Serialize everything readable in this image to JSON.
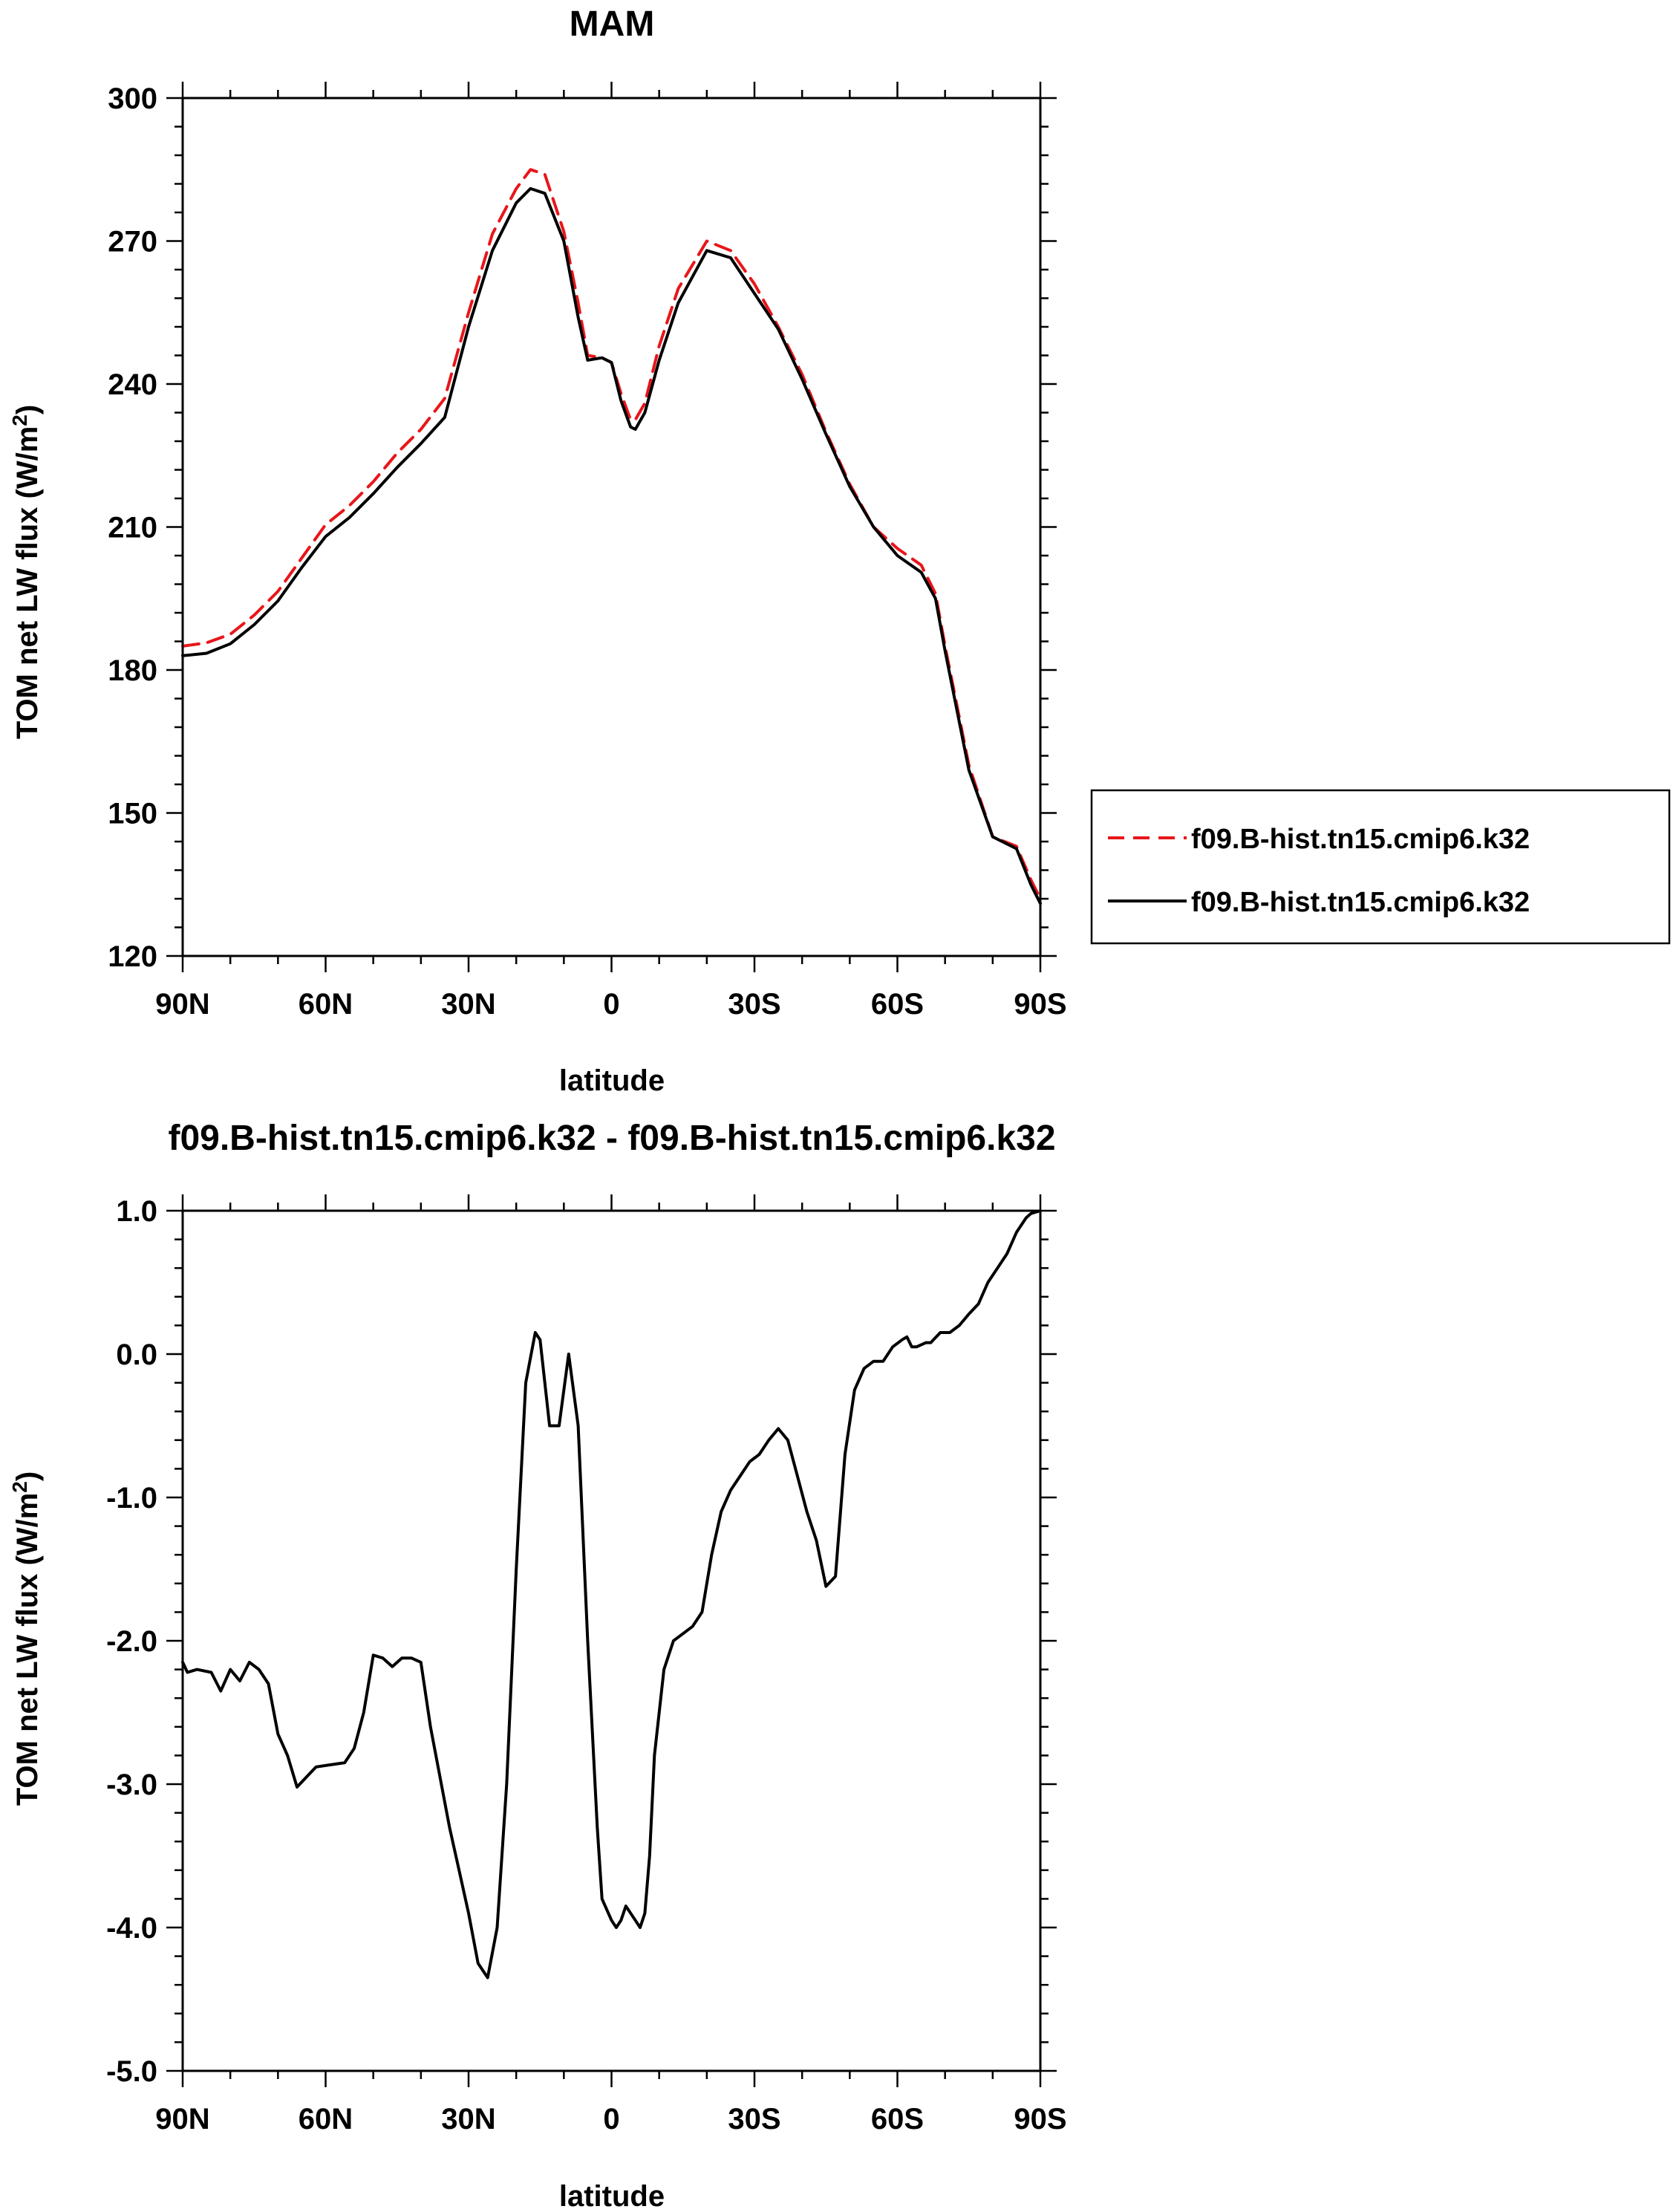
{
  "chart_data": [
    {
      "type": "line",
      "title": "MAM",
      "xlabel": "latitude",
      "ylabel": "TOM net LW flux (W/m",
      "ylabel_sup": "2",
      "ylabel_close": ")",
      "xlim": [
        90,
        -90
      ],
      "ylim": [
        120,
        300
      ],
      "x_ticks": [
        90,
        60,
        30,
        0,
        -30,
        -60,
        -90
      ],
      "x_ticklabels": [
        "90N",
        "60N",
        "30N",
        "0",
        "30S",
        "60S",
        "90S"
      ],
      "y_ticks": [
        120,
        150,
        180,
        210,
        240,
        270,
        300
      ],
      "y_ticklabels": [
        "120",
        "150",
        "180",
        "210",
        "240",
        "270",
        "300"
      ],
      "grid": false,
      "legend": "outside-right",
      "x": [
        90,
        85,
        80,
        75,
        70,
        65,
        60,
        55,
        50,
        45,
        40,
        35,
        30,
        25,
        20,
        17,
        14,
        10,
        7,
        5,
        2,
        0,
        -2,
        -4,
        -5,
        -7,
        -10,
        -14,
        -20,
        -25,
        -30,
        -35,
        -40,
        -45,
        -50,
        -55,
        -60,
        -65,
        -68,
        -70,
        -75,
        -80,
        -85,
        -88,
        -90
      ],
      "series": [
        {
          "name": "f09.B-hist.tn15.cmip6.k32",
          "color": "#e8161a",
          "dash": "dashed",
          "values": [
            185,
            185.7,
            187.5,
            191.5,
            196.5,
            203.5,
            210.5,
            214.5,
            219.5,
            225.5,
            230.5,
            237,
            255,
            271.5,
            281,
            285,
            284,
            272,
            257,
            246,
            245.5,
            244.5,
            238,
            232.5,
            232.5,
            236,
            248,
            260,
            270,
            268,
            261,
            252,
            242,
            230,
            219,
            210,
            205.5,
            202,
            196,
            185,
            160,
            145,
            143,
            136,
            132
          ]
        },
        {
          "name": "f09.B-hist.tn15.cmip6.k32",
          "color": "#000000",
          "dash": "solid",
          "values": [
            183,
            183.5,
            185.5,
            189.5,
            194.5,
            201.5,
            208,
            212,
            217,
            222.5,
            227.5,
            233,
            252,
            268,
            278,
            281,
            280,
            270,
            254,
            245,
            245.5,
            244.5,
            236.5,
            231,
            230.5,
            234,
            245,
            257,
            268,
            266.5,
            259,
            251.5,
            241,
            229.5,
            218.5,
            210,
            204,
            200.5,
            195,
            184,
            159,
            145,
            142.5,
            135,
            131
          ]
        }
      ]
    },
    {
      "type": "line",
      "title": "f09.B-hist.tn15.cmip6.k32 - f09.B-hist.tn15.cmip6.k32",
      "xlabel": "latitude",
      "ylabel": "TOM net LW flux (W/m",
      "ylabel_sup": "2",
      "ylabel_close": ")",
      "xlim": [
        90,
        -90
      ],
      "ylim": [
        -5,
        1
      ],
      "x_ticks": [
        90,
        60,
        30,
        0,
        -30,
        -60,
        -90
      ],
      "x_ticklabels": [
        "90N",
        "60N",
        "30N",
        "0",
        "30S",
        "60S",
        "90S"
      ],
      "y_ticks": [
        -5,
        -4,
        -3,
        -2,
        -1,
        0,
        1
      ],
      "y_ticklabels": [
        "-5.0",
        "-4.0",
        "-3.0",
        "-2.0",
        "-1.0",
        "0.0",
        "1.0"
      ],
      "grid": false,
      "x": [
        90,
        89,
        87,
        84,
        82,
        80,
        78,
        76,
        74,
        72,
        70,
        68,
        66,
        64,
        62,
        60,
        58,
        56,
        54,
        52,
        50,
        48,
        46,
        44,
        42,
        40,
        38,
        36,
        34,
        32,
        30,
        28,
        26,
        24,
        22,
        20,
        18,
        16,
        15,
        13,
        11,
        9,
        7,
        5,
        3,
        2,
        0,
        -1,
        -2,
        -3,
        -4,
        -5,
        -6,
        -7,
        -8,
        -9,
        -11,
        -13,
        -15,
        -17,
        -19,
        -21,
        -23,
        -25,
        -27,
        -29,
        -31,
        -33,
        -35,
        -37,
        -39,
        -41,
        -43,
        -45,
        -47,
        -49,
        -51,
        -53,
        -55,
        -57,
        -59,
        -61,
        -62,
        -63,
        -64,
        -66,
        -67,
        -69,
        -71,
        -73,
        -75,
        -77,
        -79,
        -81,
        -83,
        -85,
        -87,
        -88,
        -89,
        -90
      ],
      "series": [
        {
          "name": "",
          "color": "#000000",
          "dash": "solid",
          "values": [
            -2.15,
            -2.22,
            -2.2,
            -2.22,
            -2.35,
            -2.2,
            -2.28,
            -2.15,
            -2.2,
            -2.3,
            -2.65,
            -2.8,
            -3.02,
            -2.95,
            -2.88,
            -2.87,
            -2.86,
            -2.85,
            -2.75,
            -2.5,
            -2.1,
            -2.12,
            -2.18,
            -2.12,
            -2.12,
            -2.15,
            -2.6,
            -2.95,
            -3.3,
            -3.6,
            -3.9,
            -4.25,
            -4.35,
            -4.0,
            -3.0,
            -1.5,
            -0.2,
            0.15,
            0.1,
            -0.5,
            -0.5,
            0.0,
            -0.5,
            -2.0,
            -3.3,
            -3.8,
            -3.95,
            -4.0,
            -3.95,
            -3.85,
            -3.9,
            -3.95,
            -4.0,
            -3.9,
            -3.5,
            -2.8,
            -2.2,
            -2.0,
            -1.95,
            -1.9,
            -1.8,
            -1.4,
            -1.1,
            -0.95,
            -0.85,
            -0.75,
            -0.7,
            -0.6,
            -0.52,
            -0.6,
            -0.85,
            -1.1,
            -1.3,
            -1.62,
            -1.55,
            -0.7,
            -0.25,
            -0.1,
            -0.05,
            -0.05,
            0.05,
            0.1,
            0.12,
            0.05,
            0.05,
            0.08,
            0.08,
            0.15,
            0.15,
            0.2,
            0.28,
            0.35,
            0.5,
            0.6,
            0.7,
            0.85,
            0.95,
            0.98,
            0.99,
            1.0
          ]
        }
      ]
    }
  ]
}
